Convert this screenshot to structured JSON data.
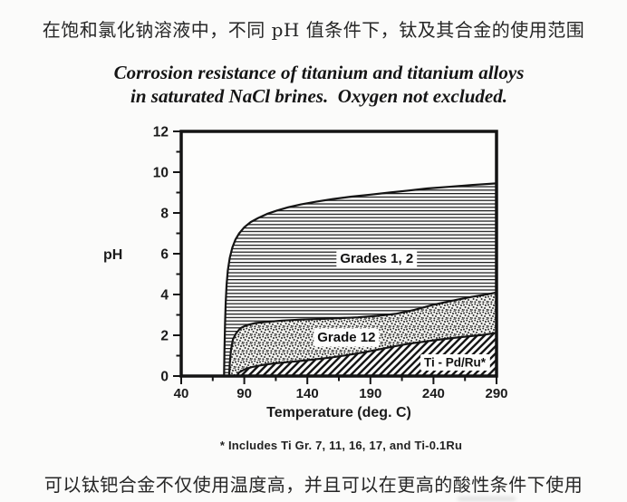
{
  "page": {
    "top_caption": "在饱和氯化钠溶液中，不同 pH 值条件下，钛及其合金的使用范围",
    "bottom_caption": "可以钛钯合金不仅使用温度高，并且可以在更高的酸性条件下使用"
  },
  "chart_data": {
    "type": "area",
    "title": "Corrosion resistance of titanium and titanium alloys in saturated NaCl brines. Oxygen not excluded.",
    "title_line1": "Corrosion resistance of titanium and titanium alloys",
    "title_line2": "in saturated NaCl brines.  Oxygen not excluded.",
    "xlabel": "Temperature (deg. C)",
    "ylabel": "pH",
    "xlim": [
      40,
      290
    ],
    "ylim": [
      0,
      12
    ],
    "x_major_ticks": [
      40,
      90,
      140,
      190,
      240,
      290
    ],
    "x_minor_ticks": [
      65,
      115,
      165,
      215,
      265
    ],
    "y_major_ticks": [
      0,
      2,
      4,
      6,
      8,
      10,
      12
    ],
    "y_minor_ticks": [
      1,
      3,
      5,
      7,
      9,
      11
    ],
    "grid": false,
    "legend_position": "labels inside plot areas",
    "footnote": "* Includes Ti Gr. 7, 11, 16, 17, and Ti-0.1Ru",
    "regions": [
      {
        "name": "Grades 1, 2",
        "pattern": "horizontal-lines",
        "label_at": {
          "T": 195,
          "pH": 5.8
        },
        "upper_boundary": [
          [
            74,
            0
          ],
          [
            74.3,
            1.2
          ],
          [
            74.8,
            2.6
          ],
          [
            75.3,
            3.6
          ],
          [
            76,
            4.5
          ],
          [
            77,
            5.2
          ],
          [
            78.5,
            5.8
          ],
          [
            80.5,
            6.3
          ],
          [
            83,
            6.7
          ],
          [
            86,
            7.0
          ],
          [
            90,
            7.3
          ],
          [
            95,
            7.55
          ],
          [
            101,
            7.75
          ],
          [
            108,
            7.95
          ],
          [
            116,
            8.12
          ],
          [
            125,
            8.28
          ],
          [
            135,
            8.42
          ],
          [
            147,
            8.55
          ],
          [
            160,
            8.68
          ],
          [
            175,
            8.8
          ],
          [
            190,
            8.9
          ],
          [
            205,
            9.0
          ],
          [
            220,
            9.1
          ],
          [
            235,
            9.2
          ],
          [
            252,
            9.28
          ],
          [
            270,
            9.37
          ],
          [
            290,
            9.45
          ]
        ]
      },
      {
        "name": "Grade 12",
        "pattern": "stipple",
        "label_at": {
          "T": 171,
          "pH": 1.93
        },
        "upper_boundary": [
          [
            78,
            0
          ],
          [
            78.6,
            0.7
          ],
          [
            79.5,
            1.3
          ],
          [
            81,
            1.8
          ],
          [
            83.5,
            2.1
          ],
          [
            87,
            2.35
          ],
          [
            92,
            2.5
          ],
          [
            99,
            2.6
          ],
          [
            108,
            2.66
          ],
          [
            120,
            2.72
          ],
          [
            135,
            2.77
          ],
          [
            150,
            2.8
          ],
          [
            165,
            2.84
          ],
          [
            180,
            2.88
          ],
          [
            195,
            2.95
          ],
          [
            210,
            3.05
          ],
          [
            225,
            3.25
          ],
          [
            240,
            3.5
          ],
          [
            255,
            3.7
          ],
          [
            270,
            3.88
          ],
          [
            280,
            3.98
          ],
          [
            290,
            4.1
          ]
        ]
      },
      {
        "name": "Ti - Pd/Ru*",
        "pattern": "diagonal-lines",
        "label_at": {
          "T": 257,
          "pH": 0.68
        },
        "upper_boundary": [
          [
            84,
            0
          ],
          [
            86,
            0.18
          ],
          [
            90,
            0.32
          ],
          [
            96,
            0.44
          ],
          [
            104,
            0.54
          ],
          [
            113,
            0.62
          ],
          [
            124,
            0.68
          ],
          [
            136,
            0.75
          ],
          [
            148,
            0.83
          ],
          [
            160,
            0.92
          ],
          [
            172,
            1.03
          ],
          [
            184,
            1.15
          ],
          [
            196,
            1.3
          ],
          [
            208,
            1.45
          ],
          [
            220,
            1.58
          ],
          [
            232,
            1.68
          ],
          [
            244,
            1.78
          ],
          [
            256,
            1.87
          ],
          [
            268,
            1.95
          ],
          [
            279,
            2.02
          ],
          [
            290,
            2.12
          ]
        ]
      }
    ]
  }
}
